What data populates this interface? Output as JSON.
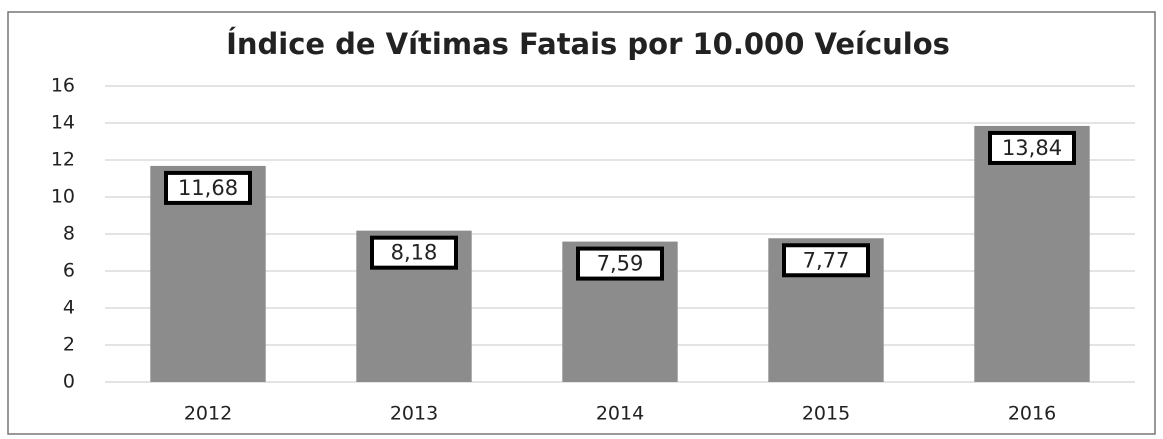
{
  "chart_data": {
    "type": "bar",
    "title": "Índice de Vítimas Fatais por 10.000 Veículos",
    "categories": [
      "2012",
      "2013",
      "2014",
      "2015",
      "2016"
    ],
    "values": [
      11.68,
      8.18,
      7.59,
      7.77,
      13.84
    ],
    "value_labels": [
      "11,68",
      "8,18",
      "7,59",
      "7,77",
      "13,84"
    ],
    "color": "#8c8c8c",
    "ylim": [
      0,
      16
    ],
    "yticks": [
      0,
      2,
      4,
      6,
      8,
      10,
      12,
      14,
      16
    ],
    "grid": true
  }
}
